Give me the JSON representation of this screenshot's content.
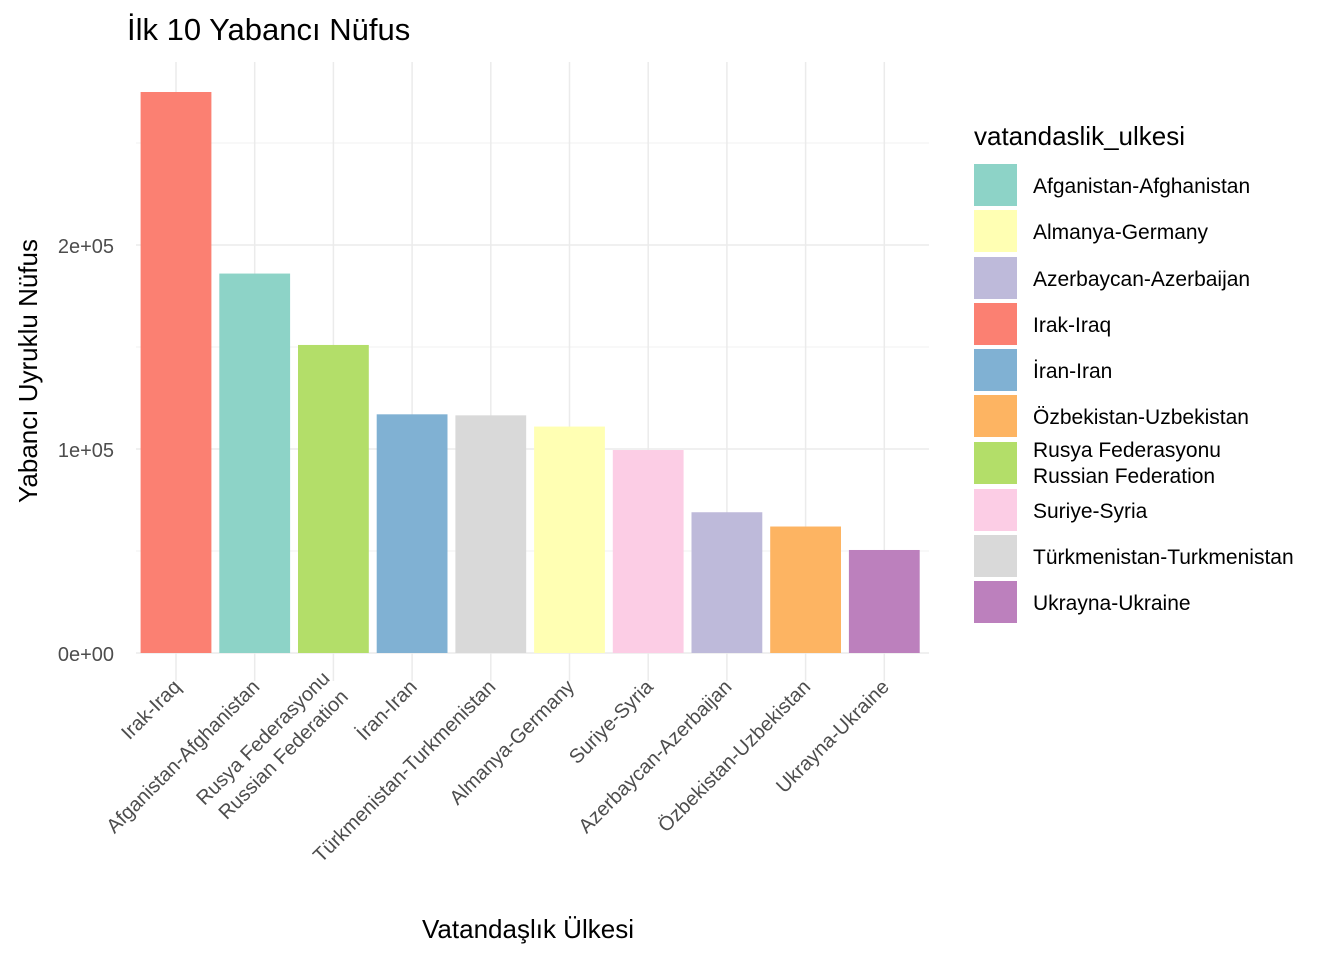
{
  "chart_data": {
    "type": "bar",
    "title": "İlk 10 Yabancı Nüfus",
    "xlabel": "Vatandaşlık Ülkesi",
    "ylabel": "Yabancı Uyruklu Nüfus",
    "ylim": [
      0,
      275000
    ],
    "yticks": [
      {
        "value": 0,
        "label": "0e+00"
      },
      {
        "value": 100000,
        "label": "1e+05"
      },
      {
        "value": 200000,
        "label": "2e+05"
      }
    ],
    "grid": true,
    "legend_position": "right",
    "legend_title": "vatandaslik_ulkesi",
    "categories": [
      {
        "label": "Irak-Iraq",
        "color": "#FB8072"
      },
      {
        "label": "Afganistan-Afghanistan",
        "color": "#8DD3C7"
      },
      {
        "label": "Rusya Federasyonu\nRussian Federation",
        "color": "#B3DE69"
      },
      {
        "label": "İran-Iran",
        "color": "#80B1D3"
      },
      {
        "label": "Türkmenistan-Turkmenistan",
        "color": "#D9D9D9"
      },
      {
        "label": "Almanya-Germany",
        "color": "#FFFFB3"
      },
      {
        "label": "Suriye-Syria",
        "color": "#FCCDE5"
      },
      {
        "label": "Azerbaycan-Azerbaijan",
        "color": "#BEBADA"
      },
      {
        "label": "Özbekistan-Uzbekistan",
        "color": "#FDB462"
      },
      {
        "label": "Ukrayna-Ukraine",
        "color": "#BC80BD"
      }
    ],
    "values": [
      275000,
      186000,
      151000,
      117000,
      116500,
      111000,
      99500,
      69000,
      62000,
      50500
    ],
    "legend": [
      {
        "label": "Afganistan-Afghanistan",
        "color": "#8DD3C7"
      },
      {
        "label": "Almanya-Germany",
        "color": "#FFFFB3"
      },
      {
        "label": "Azerbaycan-Azerbaijan",
        "color": "#BEBADA"
      },
      {
        "label": "Irak-Iraq",
        "color": "#FB8072"
      },
      {
        "label": "İran-Iran",
        "color": "#80B1D3"
      },
      {
        "label": "Özbekistan-Uzbekistan",
        "color": "#FDB462"
      },
      {
        "label": "Rusya Federasyonu\nRussian Federation",
        "color": "#B3DE69"
      },
      {
        "label": "Suriye-Syria",
        "color": "#FCCDE5"
      },
      {
        "label": "Türkmenistan-Turkmenistan",
        "color": "#D9D9D9"
      },
      {
        "label": "Ukrayna-Ukraine",
        "color": "#BC80BD"
      }
    ]
  }
}
